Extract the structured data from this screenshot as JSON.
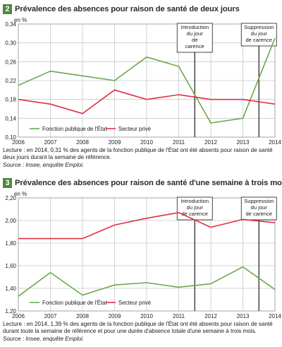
{
  "colors": {
    "green": "#6aa84f",
    "red": "#e03040",
    "badge": "#4d8a3a",
    "grid": "#c8c8c8"
  },
  "chart_data": [
    {
      "type": "line",
      "number": "2",
      "title": "Prévalence des absences pour raison de santé de deux jours",
      "ylabel": "en %",
      "x": [
        2006,
        2007,
        2008,
        2009,
        2010,
        2011,
        2012,
        2013,
        2014
      ],
      "xticks": [
        "2006",
        "2007",
        "2008",
        "2009",
        "2010",
        "2011",
        "2012",
        "2013",
        "2014"
      ],
      "ylim": [
        0.1,
        0.34
      ],
      "yticks": [
        "0,34",
        "0,30",
        "0,26",
        "0,22",
        "0,18",
        "0,14",
        "0,10"
      ],
      "series": [
        {
          "name": "Fonction publique de l'État",
          "color": "green",
          "values": [
            0.21,
            0.24,
            0.23,
            0.22,
            0.27,
            0.25,
            0.13,
            0.14,
            0.31
          ]
        },
        {
          "name": "Secteur privé",
          "color": "red",
          "values": [
            0.18,
            0.17,
            0.15,
            0.2,
            0.18,
            0.19,
            0.18,
            0.18,
            0.17
          ]
        }
      ],
      "annotations": [
        {
          "x": 2011.5,
          "label": [
            "Introduction",
            "du jour",
            "de",
            "carence"
          ]
        },
        {
          "x": 2013.5,
          "label": [
            "Suppression",
            "du jour",
            "de carence"
          ]
        }
      ],
      "legend_position": "bottom-left",
      "note": "Lecture : en 2014, 0,31 % des agents de la fonction publique de l'État ont été absents pour raison de santé deux jours durant la semaine de référence.",
      "source": "Source : Insee, enquête Emploi."
    },
    {
      "type": "line",
      "number": "3",
      "title": "Prévalence des absences pour raison de santé d'une semaine à trois mois",
      "ylabel": "en %",
      "x": [
        2006,
        2007,
        2008,
        2009,
        2010,
        2011,
        2012,
        2013,
        2014
      ],
      "xticks": [
        "2006",
        "2007",
        "2008",
        "2009",
        "2010",
        "2011",
        "2012",
        "2013",
        "2014"
      ],
      "ylim": [
        1.2,
        2.2
      ],
      "yticks": [
        "2,20",
        "2,00",
        "1,80",
        "1,60",
        "1,40",
        "1,20"
      ],
      "series": [
        {
          "name": "Fonction publique de l'État",
          "color": "green",
          "values": [
            1.33,
            1.54,
            1.34,
            1.43,
            1.45,
            1.41,
            1.44,
            1.59,
            1.39
          ]
        },
        {
          "name": "Secteur privé",
          "color": "red",
          "values": [
            1.84,
            1.84,
            1.84,
            1.96,
            2.02,
            2.07,
            1.94,
            2.01,
            1.98
          ]
        }
      ],
      "annotations": [
        {
          "x": 2011.5,
          "label": [
            "Introduction",
            "du jour",
            "de carence"
          ]
        },
        {
          "x": 2013.5,
          "label": [
            "Suppression",
            "du jour",
            "de carence"
          ]
        }
      ],
      "legend_position": "bottom-left",
      "note": "Lecture : en 2014, 1,39 % des agents de la fonction publique de l'État ont été absents pour raison de santé durant toute la semaine de référence et pour une durée d'absence totale d'une semaine à trois mois.",
      "source": "Source : Insee, enquête Emploi."
    }
  ]
}
